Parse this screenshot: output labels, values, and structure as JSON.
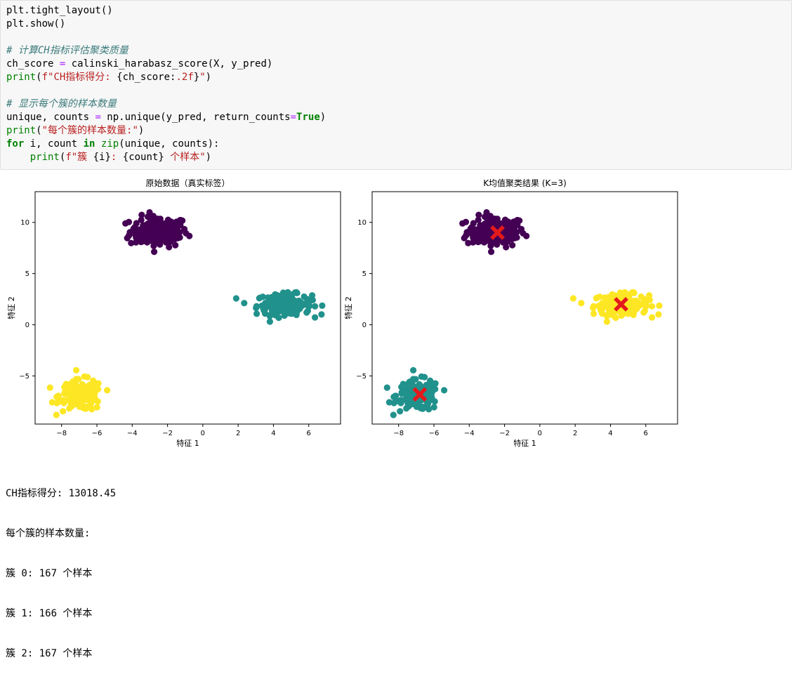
{
  "code": {
    "lines": [
      [
        {
          "t": "plt.tight_layout()",
          "c": ""
        }
      ],
      [
        {
          "t": "plt.show()",
          "c": ""
        }
      ],
      [],
      [
        {
          "t": "# 计算CH指标评估聚类质量",
          "c": "tk-comment"
        }
      ],
      [
        {
          "t": "ch_score ",
          "c": ""
        },
        {
          "t": "=",
          "c": "tk-op"
        },
        {
          "t": " calinski_harabasz_score(X, y_pred)",
          "c": ""
        }
      ],
      [
        {
          "t": "print",
          "c": "tk-builtin"
        },
        {
          "t": "(",
          "c": ""
        },
        {
          "t": "f\"CH指标得分: ",
          "c": "tk-str"
        },
        {
          "t": "{ch_score:",
          "c": ""
        },
        {
          "t": ".2f",
          "c": "tk-str"
        },
        {
          "t": "}",
          "c": ""
        },
        {
          "t": "\"",
          "c": "tk-str"
        },
        {
          "t": ")",
          "c": ""
        }
      ],
      [],
      [
        {
          "t": "# 显示每个簇的样本数量",
          "c": "tk-comment"
        }
      ],
      [
        {
          "t": "unique, counts ",
          "c": ""
        },
        {
          "t": "=",
          "c": "tk-op"
        },
        {
          "t": " np.unique(y_pred, return_counts",
          "c": ""
        },
        {
          "t": "=",
          "c": "tk-op"
        },
        {
          "t": "True",
          "c": "tk-kw"
        },
        {
          "t": ")",
          "c": ""
        }
      ],
      [
        {
          "t": "print",
          "c": "tk-builtin"
        },
        {
          "t": "(",
          "c": ""
        },
        {
          "t": "\"每个簇的样本数量:\"",
          "c": "tk-str"
        },
        {
          "t": ")",
          "c": ""
        }
      ],
      [
        {
          "t": "for",
          "c": "tk-kw"
        },
        {
          "t": " i, count ",
          "c": ""
        },
        {
          "t": "in",
          "c": "tk-kw"
        },
        {
          "t": " ",
          "c": ""
        },
        {
          "t": "zip",
          "c": "tk-builtin"
        },
        {
          "t": "(unique, counts):",
          "c": ""
        }
      ],
      [
        {
          "t": "    ",
          "c": ""
        },
        {
          "t": "print",
          "c": "tk-builtin"
        },
        {
          "t": "(",
          "c": ""
        },
        {
          "t": "f\"簇 ",
          "c": "tk-str"
        },
        {
          "t": "{i}",
          "c": ""
        },
        {
          "t": ": ",
          "c": "tk-str"
        },
        {
          "t": "{count}",
          "c": ""
        },
        {
          "t": " 个样本\"",
          "c": "tk-str"
        },
        {
          "t": ")",
          "c": ""
        }
      ]
    ]
  },
  "chart_data": [
    {
      "type": "scatter",
      "title": "原始数据（真实标签）",
      "xlabel": "特征 1",
      "ylabel": "特征 2",
      "xlim": [
        -9.5,
        7.8
      ],
      "ylim": [
        -9.7,
        13.0
      ],
      "xticks": [
        -8,
        -6,
        -4,
        -2,
        0,
        2,
        4,
        6
      ],
      "yticks": [
        -5,
        0,
        5,
        10
      ],
      "colormap": "viridis",
      "series": [
        {
          "color": "#440154",
          "center": [
            -2.5,
            9.1
          ],
          "count": 167
        },
        {
          "color": "#21918c",
          "center": [
            4.6,
            2.0
          ],
          "count": 166
        },
        {
          "color": "#fde725",
          "center": [
            -6.9,
            -6.9
          ],
          "count": 167
        }
      ]
    },
    {
      "type": "scatter",
      "title": "K均值聚类结果 (K=3)",
      "xlabel": "特征 1",
      "ylabel": "特征 2",
      "xlim": [
        -9.5,
        7.8
      ],
      "ylim": [
        -9.7,
        13.0
      ],
      "xticks": [
        -8,
        -6,
        -4,
        -2,
        0,
        2,
        4,
        6
      ],
      "yticks": [
        -5,
        0,
        5,
        10
      ],
      "colormap": "viridis",
      "series": [
        {
          "color": "#440154",
          "center": [
            -2.5,
            9.1
          ],
          "count": 167
        },
        {
          "color": "#fde725",
          "center": [
            4.6,
            2.0
          ],
          "count": 166
        },
        {
          "color": "#21918c",
          "center": [
            -6.9,
            -6.9
          ],
          "count": 167
        }
      ],
      "centroids": {
        "color": "#e31a1c",
        "marker": "X",
        "points": [
          [
            -2.4,
            9.0
          ],
          [
            4.6,
            2.0
          ],
          [
            -6.8,
            -6.8
          ]
        ]
      }
    }
  ],
  "output": {
    "lines": [
      "CH指标得分: 13018.45",
      "每个簇的样本数量:",
      "簇 0: 167 个样本",
      "簇 1: 166 个样本",
      "簇 2: 167 个样本"
    ]
  }
}
